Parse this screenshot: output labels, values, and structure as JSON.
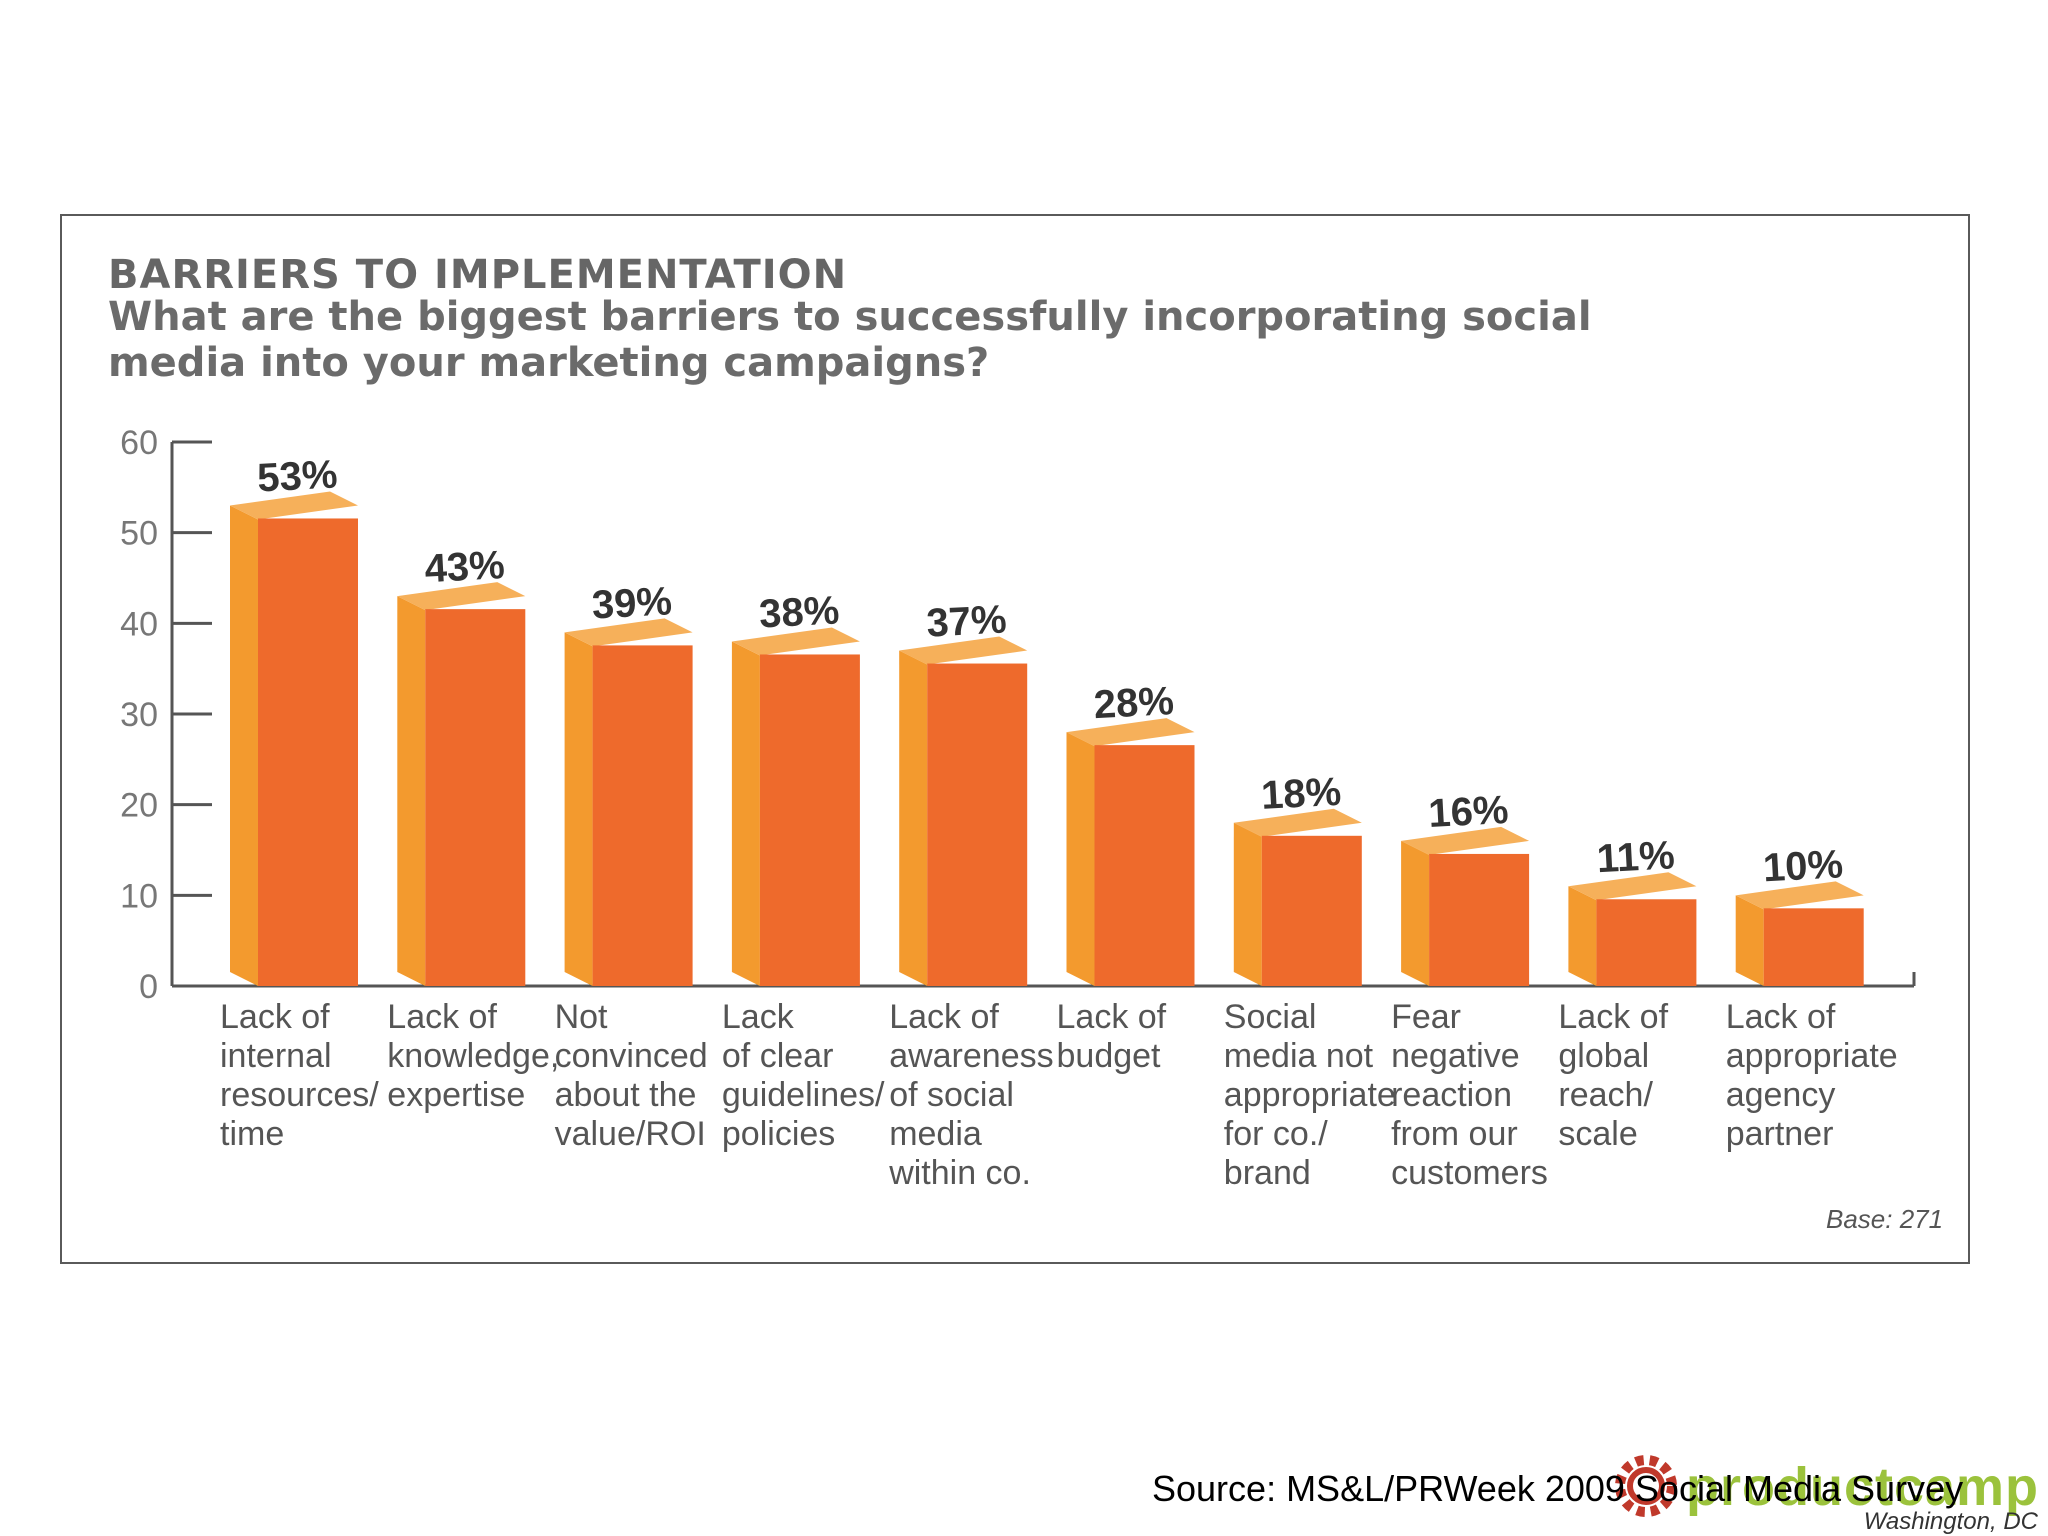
{
  "chart_data": {
    "type": "bar",
    "title": "BARRIERS TO IMPLEMENTATION",
    "subtitle": "What are the biggest barriers to successfully incorporating social media into your marketing campaigns?",
    "categories": [
      [
        "Lack of",
        "internal",
        "resources/",
        "time"
      ],
      [
        "Lack of",
        "knowledge,",
        "expertise"
      ],
      [
        "Not",
        "convinced",
        "about the",
        "value/ROI"
      ],
      [
        "Lack",
        "of clear",
        "guidelines/",
        "policies"
      ],
      [
        "Lack of",
        "awareness",
        "of social",
        "media",
        "within co."
      ],
      [
        "Lack of",
        "budget"
      ],
      [
        "Social",
        "media not",
        "appropriate",
        "for co./",
        "brand"
      ],
      [
        "Fear",
        "negative",
        "reaction",
        "from our",
        "customers"
      ],
      [
        "Lack of",
        "global",
        "reach/",
        "scale"
      ],
      [
        "Lack of",
        "appropriate",
        "agency",
        "partner"
      ]
    ],
    "values": [
      53,
      43,
      39,
      38,
      37,
      28,
      18,
      16,
      11,
      10
    ],
    "data_labels": [
      "53%",
      "43%",
      "39%",
      "38%",
      "37%",
      "28%",
      "18%",
      "16%",
      "11%",
      "10%"
    ],
    "yticks": [
      "0",
      "10",
      "20",
      "30",
      "40",
      "50",
      "60"
    ],
    "ylim": [
      0,
      60
    ],
    "grid": false,
    "colors": {
      "bar_front": "#ee6a2c",
      "bar_side": "#f39a2e",
      "bar_top": "#f6b05a",
      "axis": "#555555"
    }
  },
  "base_note": "Base: 271",
  "source": "Source: MS&L/PRWeek 2009 Social Media Survey",
  "logo": {
    "word": "productcamp",
    "subtitle": "Washington, DC",
    "icon": "gear-icon"
  }
}
